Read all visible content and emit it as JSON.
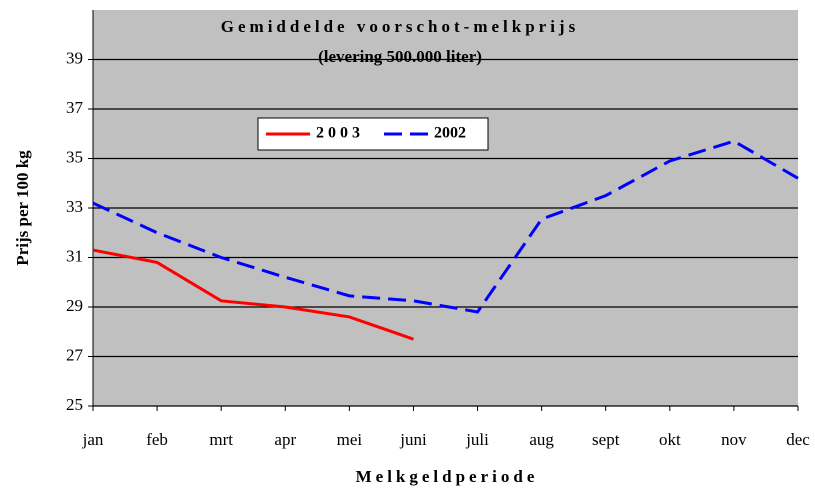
{
  "chart_data": {
    "type": "line",
    "title": "Gemiddelde voorschot-melkprijs",
    "subtitle": "(levering 500.000 liter)",
    "y_label": "Prijs per 100 kg",
    "x_label": "Melkgeldperiode",
    "categories": [
      "jan",
      "feb",
      "mrt",
      "apr",
      "mei",
      "juni",
      "juli",
      "aug",
      "sept",
      "okt",
      "nov",
      "dec"
    ],
    "series": [
      {
        "name": "2 0 0 3",
        "color": "#ff0000",
        "line_style": "solid",
        "values": [
          31.3,
          30.8,
          29.25,
          29.0,
          28.6,
          27.7,
          null,
          null,
          null,
          null,
          null,
          null
        ]
      },
      {
        "name": "2002",
        "color": "#0000ff",
        "line_style": "dashed",
        "values": [
          33.2,
          32.0,
          31.0,
          30.2,
          29.45,
          29.25,
          28.8,
          32.55,
          33.5,
          34.9,
          35.7,
          34.2
        ]
      }
    ],
    "ylim": [
      25,
      41
    ],
    "yticks": [
      25,
      27,
      29,
      31,
      33,
      35,
      37,
      39
    ],
    "grid": true
  }
}
